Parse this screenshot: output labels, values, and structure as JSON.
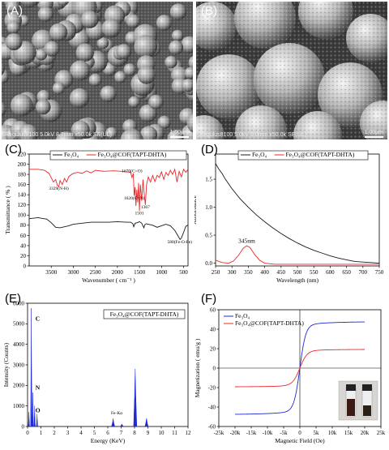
{
  "panels": {
    "A": {
      "label": "(A)",
      "caption": "Regulus8100 5.0kV 8.7mm x50.0k SE(UL)",
      "scale": "1.00μm"
    },
    "B": {
      "label": "(B)",
      "caption": "Regulus8100 5.0kV 9.0mm x50.0k SE(UL)",
      "scale": "1.00μm"
    },
    "C": {
      "label": "(C)"
    },
    "D": {
      "label": "(D)"
    },
    "E": {
      "label": "(E)"
    },
    "F": {
      "label": "(F)"
    }
  },
  "colors": {
    "black_series": "#1a1a1a",
    "red_series": "#e8292b",
    "blue_series": "#1f2ad6"
  },
  "chart_data": [
    {
      "id": "C",
      "type": "line",
      "xlabel": "Wavenumber ( cm⁻¹ )",
      "ylabel": "Transmittance ( % )",
      "xlim": [
        4000,
        400
      ],
      "ylim": [
        0,
        220
      ],
      "xticks": [
        3500,
        3000,
        2500,
        2000,
        1500,
        1000,
        500
      ],
      "yticks": [
        0,
        20,
        40,
        60,
        80,
        100,
        120,
        140,
        160,
        180,
        200,
        220
      ],
      "series": [
        {
          "name": "Fe₃O₄",
          "color": "#1a1a1a",
          "points": [
            [
              4000,
              93
            ],
            [
              3800,
              95
            ],
            [
              3600,
              92
            ],
            [
              3500,
              85
            ],
            [
              3400,
              76
            ],
            [
              3300,
              75
            ],
            [
              3200,
              77
            ],
            [
              3100,
              79
            ],
            [
              3000,
              82
            ],
            [
              2800,
              84
            ],
            [
              2600,
              86
            ],
            [
              2400,
              86
            ],
            [
              2200,
              86
            ],
            [
              2000,
              87
            ],
            [
              1800,
              86
            ],
            [
              1700,
              86
            ],
            [
              1650,
              83
            ],
            [
              1630,
              77
            ],
            [
              1600,
              84
            ],
            [
              1550,
              85
            ],
            [
              1500,
              87
            ],
            [
              1450,
              84
            ],
            [
              1400,
              75
            ],
            [
              1380,
              81
            ],
            [
              1350,
              83
            ],
            [
              1300,
              82
            ],
            [
              1200,
              80
            ],
            [
              1100,
              76
            ],
            [
              1000,
              79
            ],
            [
              900,
              82
            ],
            [
              800,
              79
            ],
            [
              700,
              70
            ],
            [
              620,
              58
            ],
            [
              580,
              52
            ],
            [
              550,
              55
            ],
            [
              500,
              66
            ],
            [
              450,
              78
            ],
            [
              400,
              80
            ]
          ]
        },
        {
          "name": "Fe₃O₄@COF(TAPT-DHTA)",
          "color": "#e8292b",
          "points": [
            [
              4000,
              190
            ],
            [
              3800,
              190
            ],
            [
              3650,
              188
            ],
            [
              3550,
              182
            ],
            [
              3450,
              165
            ],
            [
              3400,
              170
            ],
            [
              3360,
              158
            ],
            [
              3329,
              156
            ],
            [
              3300,
              168
            ],
            [
              3250,
              160
            ],
            [
              3200,
              172
            ],
            [
              3150,
              165
            ],
            [
              3100,
              176
            ],
            [
              3000,
              182
            ],
            [
              2900,
              184
            ],
            [
              2800,
              182
            ],
            [
              2700,
              187
            ],
            [
              2600,
              183
            ],
            [
              2500,
              188
            ],
            [
              2300,
              186
            ],
            [
              2100,
              187
            ],
            [
              1900,
              186
            ],
            [
              1800,
              185
            ],
            [
              1700,
              184
            ],
            [
              1670,
              174
            ],
            [
              1640,
              182
            ],
            [
              1620,
              138
            ],
            [
              1600,
              155
            ],
            [
              1580,
              118
            ],
            [
              1560,
              150
            ],
            [
              1540,
              125
            ],
            [
              1520,
              163
            ],
            [
              1501,
              108
            ],
            [
              1480,
              160
            ],
            [
              1450,
              128
            ],
            [
              1420,
              170
            ],
            [
              1400,
              148
            ],
            [
              1367,
              120
            ],
            [
              1340,
              160
            ],
            [
              1300,
              175
            ],
            [
              1250,
              165
            ],
            [
              1200,
              178
            ],
            [
              1150,
              166
            ],
            [
              1100,
              178
            ],
            [
              1050,
              174
            ],
            [
              1000,
              185
            ],
            [
              950,
              170
            ],
            [
              900,
              184
            ],
            [
              850,
              178
            ],
            [
              800,
              188
            ],
            [
              750,
              180
            ],
            [
              700,
              190
            ],
            [
              650,
              165
            ],
            [
              600,
              186
            ],
            [
              550,
              175
            ],
            [
              500,
              190
            ],
            [
              450,
              184
            ],
            [
              400,
              190
            ]
          ]
        }
      ],
      "annotations": [
        {
          "text": "3329(N-H)",
          "x": 3329,
          "y": 150
        },
        {
          "text": "1670(C=O)",
          "x": 1670,
          "y": 184
        },
        {
          "text": "1620(C=N)",
          "x": 1620,
          "y": 131
        },
        {
          "text": "1501",
          "x": 1501,
          "y": 101
        },
        {
          "text": "1367",
          "x": 1367,
          "y": 113
        },
        {
          "text": "588(Fe-O-Fe)",
          "x": 588,
          "y": 45
        }
      ]
    },
    {
      "id": "D",
      "type": "line",
      "xlabel": "Wavelength (nm)",
      "ylabel": "Absorbance",
      "xlim": [
        250,
        750
      ],
      "ylim": [
        -0.05,
        1.95
      ],
      "xticks": [
        250,
        300,
        350,
        400,
        450,
        500,
        550,
        600,
        650,
        700,
        750
      ],
      "yticks": [
        0.0,
        0.5,
        1.0,
        1.5
      ],
      "series": [
        {
          "name": "Fe₃O₄",
          "color": "#1a1a1a",
          "points": [
            [
              250,
              1.78
            ],
            [
              260,
              1.68
            ],
            [
              270,
              1.6
            ],
            [
              280,
              1.5
            ],
            [
              300,
              1.33
            ],
            [
              325,
              1.15
            ],
            [
              350,
              1.0
            ],
            [
              375,
              0.86
            ],
            [
              400,
              0.74
            ],
            [
              425,
              0.63
            ],
            [
              450,
              0.53
            ],
            [
              475,
              0.44
            ],
            [
              500,
              0.36
            ],
            [
              525,
              0.29
            ],
            [
              550,
              0.23
            ],
            [
              575,
              0.18
            ],
            [
              600,
              0.13
            ],
            [
              625,
              0.09
            ],
            [
              650,
              0.06
            ],
            [
              675,
              0.03
            ],
            [
              700,
              0.02
            ],
            [
              725,
              0.01
            ],
            [
              750,
              0.0
            ]
          ]
        },
        {
          "name": "Fe₃O₄@COF(TAPT-DHTA)",
          "color": "#e8292b",
          "points": [
            [
              250,
              0.05
            ],
            [
              270,
              0.01
            ],
            [
              290,
              0.0
            ],
            [
              305,
              0.04
            ],
            [
              320,
              0.14
            ],
            [
              335,
              0.27
            ],
            [
              345,
              0.31
            ],
            [
              355,
              0.28
            ],
            [
              370,
              0.15
            ],
            [
              385,
              0.05
            ],
            [
              400,
              0.0
            ],
            [
              430,
              -0.02
            ],
            [
              470,
              -0.02
            ],
            [
              550,
              -0.02
            ],
            [
              650,
              -0.02
            ],
            [
              750,
              -0.02
            ]
          ]
        }
      ],
      "annotations": [
        {
          "text": "345nm",
          "x": 345,
          "y": 0.36
        }
      ]
    },
    {
      "id": "E",
      "type": "line",
      "xlabel": "Energy (KeV)",
      "ylabel": "Intensity (Counts)",
      "xlim": [
        0,
        12
      ],
      "ylim": [
        0,
        6000
      ],
      "xticks": [
        0,
        1,
        2,
        3,
        4,
        5,
        6,
        7,
        8,
        9,
        10,
        11,
        12
      ],
      "yticks": [
        0,
        1000,
        2000,
        3000,
        4000,
        5000,
        6000
      ],
      "series": [
        {
          "name": "Fe₃O₄@COF(TAPT-DHTA)",
          "color": "#1f2ad6",
          "peaks": [
            [
              0.1,
              700
            ],
            [
              0.28,
              5750
            ],
            [
              0.39,
              1650
            ],
            [
              0.53,
              1000
            ],
            [
              0.71,
              600
            ],
            [
              6.4,
              380
            ],
            [
              7.05,
              120
            ],
            [
              8.05,
              2800
            ],
            [
              8.9,
              400
            ]
          ]
        }
      ],
      "annotations": [
        {
          "text": "C",
          "x": 0.35,
          "y": 5150
        },
        {
          "text": "N",
          "x": 0.35,
          "y": 1800
        },
        {
          "text": "O",
          "x": 0.35,
          "y": 700
        },
        {
          "text": "Fe-Kα",
          "x": 6.0,
          "y": 600
        }
      ]
    },
    {
      "id": "F",
      "type": "line",
      "xlabel": "Magnetic Field (Oe)",
      "ylabel": "Magnetization ( emu/g )",
      "xlim": [
        -25000,
        25000
      ],
      "ylim": [
        -60,
        60
      ],
      "xticks": [
        -25000,
        -20000,
        -15000,
        -10000,
        -5000,
        0,
        5000,
        10000,
        15000,
        20000,
        25000
      ],
      "xticklabels": [
        "-25k",
        "-20k",
        "-15k",
        "-10k",
        "-5k",
        "0",
        "5k",
        "10k",
        "15k",
        "20k",
        "25k"
      ],
      "yticks": [
        -60,
        -40,
        -20,
        0,
        20,
        40,
        60
      ],
      "series": [
        {
          "name": "Fe₃O₄",
          "color": "#1f2ad6",
          "ms": 47.8,
          "h0": 1800
        },
        {
          "name": "Fe₃O₄@COF(TAPT-DHTA)",
          "color": "#e8292b",
          "ms": 19.3,
          "h0": 2200
        }
      ]
    }
  ]
}
